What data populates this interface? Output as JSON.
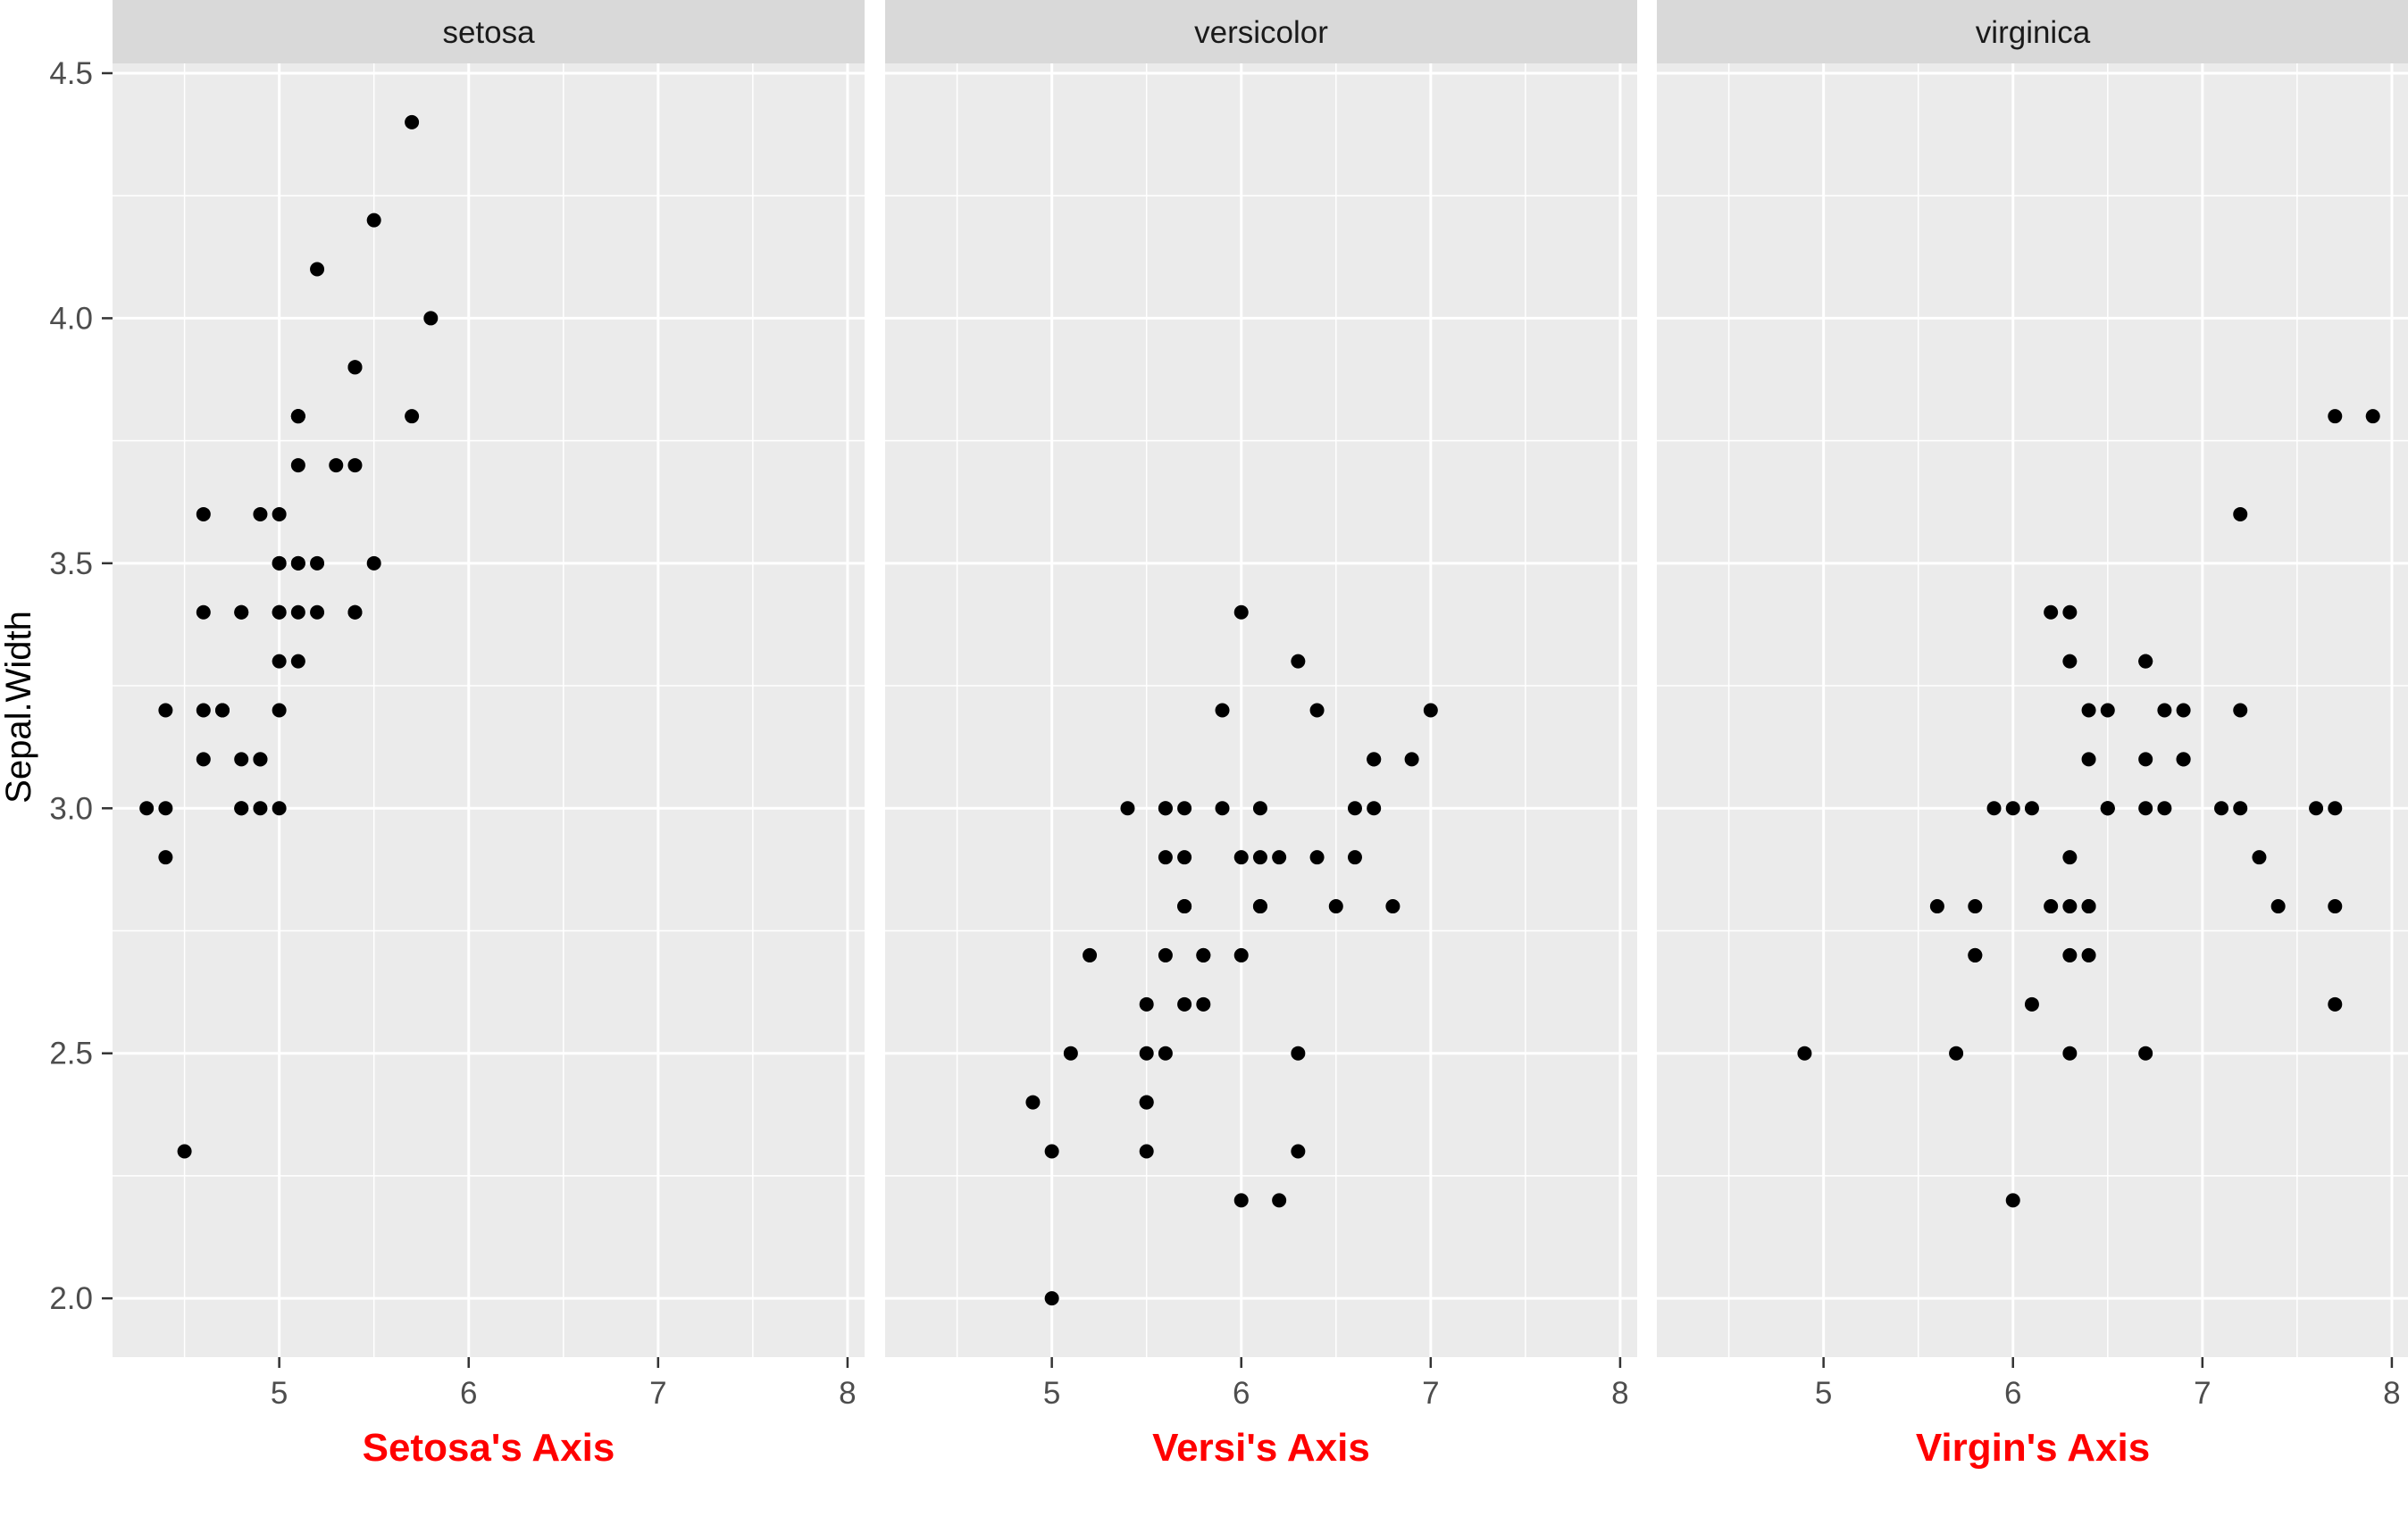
{
  "chart_data": {
    "type": "scatter",
    "ylabel": "Sepal.Width",
    "xlim": [
      4.12,
      8.09
    ],
    "ylim": [
      1.88,
      4.52
    ],
    "x_ticks": [
      5,
      6,
      7,
      8
    ],
    "x_tick_labels": [
      "5",
      "6",
      "7",
      "8"
    ],
    "y_ticks": [
      2.0,
      2.5,
      3.0,
      3.5,
      4.0,
      4.5
    ],
    "y_tick_labels": [
      "2.0",
      "2.5",
      "3.0",
      "3.5",
      "4.0",
      "4.5"
    ],
    "grid": true,
    "colors": {
      "panel_bg": "#ebebeb",
      "strip_bg": "#d9d9d9",
      "grid": "#ffffff",
      "point": "#000000",
      "axis_title": "#ff0000",
      "tick_label": "#4d4d4d"
    },
    "panels": [
      {
        "strip": "setosa",
        "xlabel": "Setosa's Axis",
        "points": [
          [
            5.1,
            3.5
          ],
          [
            4.9,
            3.0
          ],
          [
            4.7,
            3.2
          ],
          [
            4.6,
            3.1
          ],
          [
            5.0,
            3.6
          ],
          [
            5.4,
            3.9
          ],
          [
            4.6,
            3.4
          ],
          [
            5.0,
            3.4
          ],
          [
            4.4,
            2.9
          ],
          [
            4.9,
            3.1
          ],
          [
            5.4,
            3.7
          ],
          [
            4.8,
            3.4
          ],
          [
            4.8,
            3.0
          ],
          [
            4.3,
            3.0
          ],
          [
            5.8,
            4.0
          ],
          [
            5.7,
            4.4
          ],
          [
            5.4,
            3.9
          ],
          [
            5.1,
            3.5
          ],
          [
            5.7,
            3.8
          ],
          [
            5.1,
            3.8
          ],
          [
            5.4,
            3.4
          ],
          [
            5.1,
            3.7
          ],
          [
            4.6,
            3.6
          ],
          [
            5.1,
            3.3
          ],
          [
            4.8,
            3.4
          ],
          [
            5.0,
            3.0
          ],
          [
            5.0,
            3.4
          ],
          [
            5.2,
            3.5
          ],
          [
            5.2,
            3.4
          ],
          [
            4.7,
            3.2
          ],
          [
            4.8,
            3.1
          ],
          [
            5.4,
            3.4
          ],
          [
            5.2,
            4.1
          ],
          [
            5.5,
            4.2
          ],
          [
            4.9,
            3.1
          ],
          [
            5.0,
            3.2
          ],
          [
            5.5,
            3.5
          ],
          [
            4.9,
            3.6
          ],
          [
            4.4,
            3.0
          ],
          [
            5.1,
            3.4
          ],
          [
            5.0,
            3.5
          ],
          [
            4.5,
            2.3
          ],
          [
            4.4,
            3.2
          ],
          [
            5.0,
            3.5
          ],
          [
            5.1,
            3.8
          ],
          [
            4.8,
            3.0
          ],
          [
            5.1,
            3.8
          ],
          [
            4.6,
            3.2
          ],
          [
            5.3,
            3.7
          ],
          [
            5.0,
            3.3
          ]
        ]
      },
      {
        "strip": "versicolor",
        "xlabel": "Versi's Axis",
        "points": [
          [
            7.0,
            3.2
          ],
          [
            6.4,
            3.2
          ],
          [
            6.9,
            3.1
          ],
          [
            5.5,
            2.3
          ],
          [
            6.5,
            2.8
          ],
          [
            5.7,
            2.8
          ],
          [
            6.3,
            3.3
          ],
          [
            4.9,
            2.4
          ],
          [
            6.6,
            2.9
          ],
          [
            5.2,
            2.7
          ],
          [
            5.0,
            2.0
          ],
          [
            5.9,
            3.0
          ],
          [
            6.0,
            2.2
          ],
          [
            6.1,
            2.9
          ],
          [
            5.6,
            2.9
          ],
          [
            6.7,
            3.1
          ],
          [
            5.6,
            3.0
          ],
          [
            5.8,
            2.7
          ],
          [
            6.2,
            2.2
          ],
          [
            5.6,
            2.5
          ],
          [
            5.9,
            3.2
          ],
          [
            6.1,
            2.8
          ],
          [
            6.3,
            2.5
          ],
          [
            6.1,
            2.8
          ],
          [
            6.4,
            2.9
          ],
          [
            6.6,
            3.0
          ],
          [
            6.8,
            2.8
          ],
          [
            6.7,
            3.0
          ],
          [
            6.0,
            2.9
          ],
          [
            5.7,
            2.6
          ],
          [
            5.5,
            2.4
          ],
          [
            5.5,
            2.4
          ],
          [
            5.8,
            2.7
          ],
          [
            6.0,
            2.7
          ],
          [
            5.4,
            3.0
          ],
          [
            6.0,
            3.4
          ],
          [
            6.7,
            3.1
          ],
          [
            6.3,
            2.3
          ],
          [
            5.6,
            3.0
          ],
          [
            5.5,
            2.5
          ],
          [
            5.5,
            2.6
          ],
          [
            6.1,
            3.0
          ],
          [
            5.8,
            2.6
          ],
          [
            5.0,
            2.3
          ],
          [
            5.6,
            2.7
          ],
          [
            5.7,
            3.0
          ],
          [
            5.7,
            2.9
          ],
          [
            6.2,
            2.9
          ],
          [
            5.1,
            2.5
          ],
          [
            5.7,
            2.8
          ]
        ]
      },
      {
        "strip": "virginica",
        "xlabel": "Virgin's Axis",
        "points": [
          [
            6.3,
            3.3
          ],
          [
            5.8,
            2.7
          ],
          [
            7.1,
            3.0
          ],
          [
            6.3,
            2.9
          ],
          [
            6.5,
            3.0
          ],
          [
            7.6,
            3.0
          ],
          [
            4.9,
            2.5
          ],
          [
            7.3,
            2.9
          ],
          [
            6.7,
            2.5
          ],
          [
            7.2,
            3.6
          ],
          [
            6.5,
            3.2
          ],
          [
            6.4,
            2.7
          ],
          [
            6.8,
            3.0
          ],
          [
            5.7,
            2.5
          ],
          [
            5.8,
            2.8
          ],
          [
            6.4,
            3.2
          ],
          [
            6.5,
            3.0
          ],
          [
            7.7,
            3.8
          ],
          [
            7.7,
            2.6
          ],
          [
            6.0,
            2.2
          ],
          [
            6.9,
            3.2
          ],
          [
            5.6,
            2.8
          ],
          [
            7.7,
            2.8
          ],
          [
            6.3,
            2.7
          ],
          [
            6.7,
            3.3
          ],
          [
            7.2,
            3.2
          ],
          [
            6.2,
            2.8
          ],
          [
            6.1,
            3.0
          ],
          [
            6.4,
            2.8
          ],
          [
            7.2,
            3.0
          ],
          [
            7.4,
            2.8
          ],
          [
            7.9,
            3.8
          ],
          [
            6.4,
            2.8
          ],
          [
            6.3,
            2.8
          ],
          [
            6.1,
            2.6
          ],
          [
            7.7,
            3.0
          ],
          [
            6.3,
            3.4
          ],
          [
            6.4,
            3.1
          ],
          [
            6.0,
            3.0
          ],
          [
            6.9,
            3.1
          ],
          [
            6.7,
            3.1
          ],
          [
            6.9,
            3.1
          ],
          [
            5.8,
            2.7
          ],
          [
            6.8,
            3.2
          ],
          [
            6.7,
            3.3
          ],
          [
            6.7,
            3.0
          ],
          [
            6.3,
            2.5
          ],
          [
            6.5,
            3.0
          ],
          [
            6.2,
            3.4
          ],
          [
            5.9,
            3.0
          ]
        ]
      }
    ]
  }
}
